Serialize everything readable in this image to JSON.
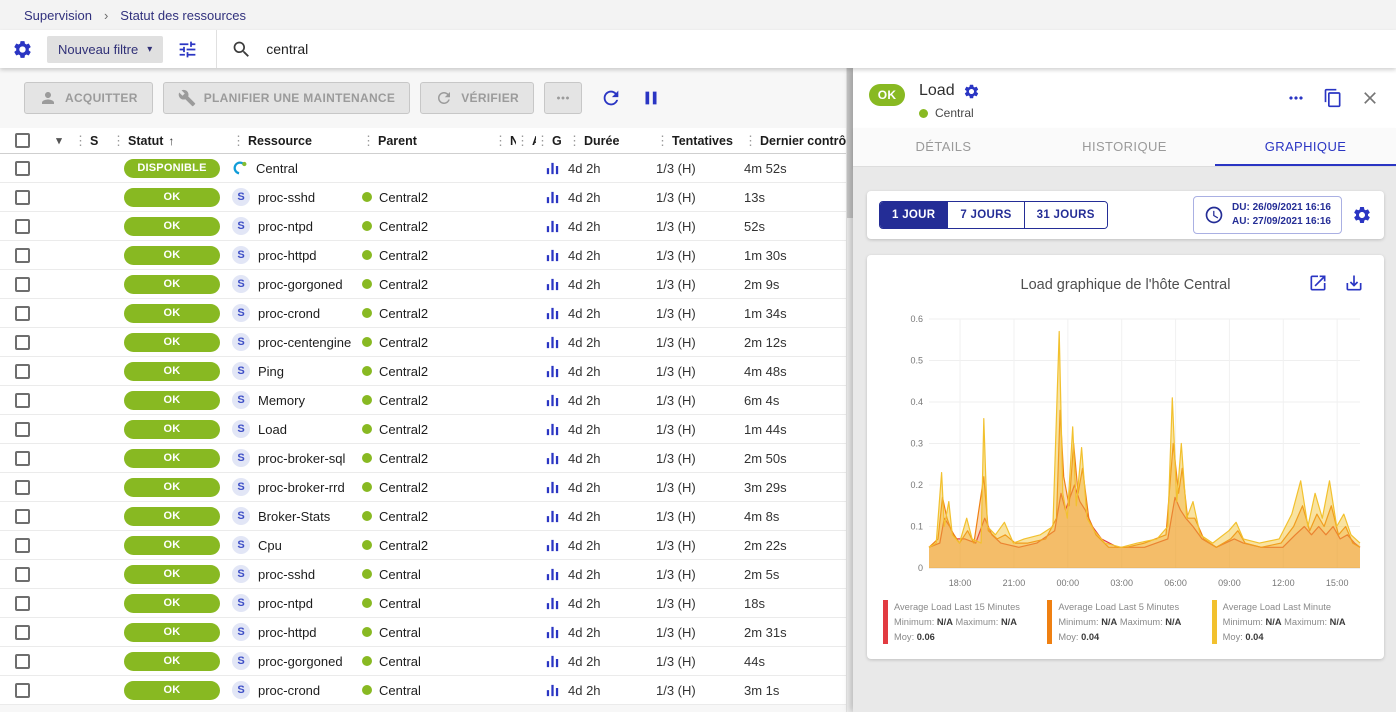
{
  "colors": {
    "accent": "#2a35c3",
    "navy": "#242d96",
    "status_ok": "#88b922",
    "chart_red": "#e23b41",
    "chart_orange": "#ef8012",
    "chart_yellow": "#f2c12e"
  },
  "icons": {
    "chevron_down": "▾",
    "sort_asc": "↑",
    "column_handle": "⋮",
    "breadcrumb_separator": "›",
    "service_letter": "S"
  },
  "breadcrumb": {
    "items": [
      "Supervision",
      "Statut des ressources"
    ]
  },
  "filter_bar": {
    "new_filter_label": "Nouveau filtre",
    "search_value": "central"
  },
  "toolbar": {
    "acknowledge_label": "ACQUITTER",
    "maintenance_label": "PLANIFIER UNE MAINTENANCE",
    "check_label": "VÉRIFIER"
  },
  "table": {
    "headers": {
      "s": "S",
      "status": "Statut",
      "resource": "Ressource",
      "parent": "Parent",
      "n": "N",
      "a": "A",
      "g": "G",
      "duration": "Durée",
      "tries": "Tentatives",
      "last_check": "Dernier contrôle"
    },
    "rows": [
      {
        "status": "DISPONIBLE",
        "kind": "host",
        "resource": "Central",
        "parent": "",
        "duration": "4d 2h",
        "tries": "1/3 (H)",
        "last_check": "4m 52s"
      },
      {
        "status": "OK",
        "kind": "service",
        "resource": "proc-sshd",
        "parent": "Central2",
        "duration": "4d 2h",
        "tries": "1/3 (H)",
        "last_check": "13s"
      },
      {
        "status": "OK",
        "kind": "service",
        "resource": "proc-ntpd",
        "parent": "Central2",
        "duration": "4d 2h",
        "tries": "1/3 (H)",
        "last_check": "52s"
      },
      {
        "status": "OK",
        "kind": "service",
        "resource": "proc-httpd",
        "parent": "Central2",
        "duration": "4d 2h",
        "tries": "1/3 (H)",
        "last_check": "1m 30s"
      },
      {
        "status": "OK",
        "kind": "service",
        "resource": "proc-gorgoned",
        "parent": "Central2",
        "duration": "4d 2h",
        "tries": "1/3 (H)",
        "last_check": "2m 9s"
      },
      {
        "status": "OK",
        "kind": "service",
        "resource": "proc-crond",
        "parent": "Central2",
        "duration": "4d 2h",
        "tries": "1/3 (H)",
        "last_check": "1m 34s"
      },
      {
        "status": "OK",
        "kind": "service",
        "resource": "proc-centengine",
        "parent": "Central2",
        "duration": "4d 2h",
        "tries": "1/3 (H)",
        "last_check": "2m 12s"
      },
      {
        "status": "OK",
        "kind": "service",
        "resource": "Ping",
        "parent": "Central2",
        "duration": "4d 2h",
        "tries": "1/3 (H)",
        "last_check": "4m 48s"
      },
      {
        "status": "OK",
        "kind": "service",
        "resource": "Memory",
        "parent": "Central2",
        "duration": "4d 2h",
        "tries": "1/3 (H)",
        "last_check": "6m 4s"
      },
      {
        "status": "OK",
        "kind": "service",
        "resource": "Load",
        "parent": "Central2",
        "duration": "4d 2h",
        "tries": "1/3 (H)",
        "last_check": "1m 44s"
      },
      {
        "status": "OK",
        "kind": "service",
        "resource": "proc-broker-sql",
        "parent": "Central2",
        "duration": "4d 2h",
        "tries": "1/3 (H)",
        "last_check": "2m 50s"
      },
      {
        "status": "OK",
        "kind": "service",
        "resource": "proc-broker-rrd",
        "parent": "Central2",
        "duration": "4d 2h",
        "tries": "1/3 (H)",
        "last_check": "3m 29s"
      },
      {
        "status": "OK",
        "kind": "service",
        "resource": "Broker-Stats",
        "parent": "Central2",
        "duration": "4d 2h",
        "tries": "1/3 (H)",
        "last_check": "4m 8s"
      },
      {
        "status": "OK",
        "kind": "service",
        "resource": "Cpu",
        "parent": "Central2",
        "duration": "4d 2h",
        "tries": "1/3 (H)",
        "last_check": "2m 22s"
      },
      {
        "status": "OK",
        "kind": "service",
        "resource": "proc-sshd",
        "parent": "Central",
        "duration": "4d 2h",
        "tries": "1/3 (H)",
        "last_check": "2m 5s"
      },
      {
        "status": "OK",
        "kind": "service",
        "resource": "proc-ntpd",
        "parent": "Central",
        "duration": "4d 2h",
        "tries": "1/3 (H)",
        "last_check": "18s"
      },
      {
        "status": "OK",
        "kind": "service",
        "resource": "proc-httpd",
        "parent": "Central",
        "duration": "4d 2h",
        "tries": "1/3 (H)",
        "last_check": "2m 31s"
      },
      {
        "status": "OK",
        "kind": "service",
        "resource": "proc-gorgoned",
        "parent": "Central",
        "duration": "4d 2h",
        "tries": "1/3 (H)",
        "last_check": "44s"
      },
      {
        "status": "OK",
        "kind": "service",
        "resource": "proc-crond",
        "parent": "Central",
        "duration": "4d 2h",
        "tries": "1/3 (H)",
        "last_check": "3m 1s"
      }
    ]
  },
  "panel": {
    "status": "OK",
    "title": "Load",
    "parent": "Central",
    "tabs": [
      "DÉTAILS",
      "HISTORIQUE",
      "GRAPHIQUE"
    ],
    "active_tab": "GRAPHIQUE",
    "time_buttons": [
      "1 JOUR",
      "7 JOURS",
      "31 JOURS"
    ],
    "active_time_button": "1 JOUR",
    "from_label": "DU: 26/09/2021 16:16",
    "to_label": "AU: 27/09/2021 16:16",
    "chart_title": "Load graphique de l'hôte Central",
    "legend": [
      {
        "title": "Average Load Last 15 Minutes",
        "min_label": "Minimum:",
        "min": "N/A",
        "max_label": "Maximum:",
        "max": "N/A",
        "avg_label": "Moy:",
        "avg": "0.06",
        "color": "#e23b41"
      },
      {
        "title": "Average Load Last 5 Minutes",
        "min_label": "Minimum:",
        "min": "N/A",
        "max_label": "Maximum:",
        "max": "N/A",
        "avg_label": "Moy:",
        "avg": "0.04",
        "color": "#ef8012"
      },
      {
        "title": "Average Load Last Minute",
        "min_label": "Minimum:",
        "min": "N/A",
        "max_label": "Maximum:",
        "max": "N/A",
        "avg_label": "Moy:",
        "avg": "0.04",
        "color": "#f2c12e"
      }
    ]
  },
  "chart_data": {
    "type": "area",
    "title": "Load graphique de l'hôte Central",
    "xlabel": "",
    "ylabel": "",
    "xlim": [
      0,
      24
    ],
    "ylim": [
      0,
      0.6
    ],
    "y_ticks": [
      0,
      0.1,
      0.2,
      0.3,
      0.4,
      0.5,
      0.6
    ],
    "x_ticks": [
      {
        "t": 1.73,
        "label": "18:00"
      },
      {
        "t": 4.73,
        "label": "21:00"
      },
      {
        "t": 7.73,
        "label": "00:00"
      },
      {
        "t": 10.73,
        "label": "03:00"
      },
      {
        "t": 13.73,
        "label": "06:00"
      },
      {
        "t": 16.73,
        "label": "09:00"
      },
      {
        "t": 19.73,
        "label": "12:00"
      },
      {
        "t": 22.73,
        "label": "15:00"
      }
    ],
    "series": [
      {
        "name": "Average Load Last 15 Minutes",
        "color": "#e23b41",
        "avg": 0.06,
        "points": [
          [
            0,
            0.05
          ],
          [
            0.6,
            0.06
          ],
          [
            0.85,
            0.12
          ],
          [
            1.15,
            0.1
          ],
          [
            1.5,
            0.07
          ],
          [
            2.0,
            0.07
          ],
          [
            2.6,
            0.06
          ],
          [
            3.1,
            0.12
          ],
          [
            3.5,
            0.08
          ],
          [
            4.0,
            0.06
          ],
          [
            5,
            0.05
          ],
          [
            6,
            0.06
          ],
          [
            7.0,
            0.09
          ],
          [
            7.35,
            0.18
          ],
          [
            7.6,
            0.14
          ],
          [
            8.1,
            0.2
          ],
          [
            8.4,
            0.16
          ],
          [
            8.7,
            0.14
          ],
          [
            9.1,
            0.1
          ],
          [
            9.6,
            0.07
          ],
          [
            10.5,
            0.05
          ],
          [
            12,
            0.05
          ],
          [
            13.3,
            0.07
          ],
          [
            13.7,
            0.17
          ],
          [
            14.0,
            0.14
          ],
          [
            14.3,
            0.12
          ],
          [
            14.7,
            0.1
          ],
          [
            15.2,
            0.07
          ],
          [
            16,
            0.05
          ],
          [
            17,
            0.07
          ],
          [
            17.5,
            0.06
          ],
          [
            18.5,
            0.05
          ],
          [
            19.7,
            0.05
          ],
          [
            20.4,
            0.08
          ],
          [
            20.9,
            0.1
          ],
          [
            21.3,
            0.08
          ],
          [
            21.7,
            0.1
          ],
          [
            22.1,
            0.08
          ],
          [
            22.5,
            0.1
          ],
          [
            22.9,
            0.07
          ],
          [
            23.3,
            0.08
          ],
          [
            23.7,
            0.06
          ],
          [
            24,
            0.05
          ]
        ]
      },
      {
        "name": "Average Load Last 5 Minutes",
        "color": "#ef8012",
        "avg": 0.04,
        "points": [
          [
            0,
            0.05
          ],
          [
            0.5,
            0.07
          ],
          [
            0.75,
            0.17
          ],
          [
            1.0,
            0.12
          ],
          [
            1.25,
            0.09
          ],
          [
            1.7,
            0.06
          ],
          [
            2.15,
            0.09
          ],
          [
            2.5,
            0.06
          ],
          [
            3.05,
            0.22
          ],
          [
            3.3,
            0.09
          ],
          [
            3.8,
            0.07
          ],
          [
            4.25,
            0.08
          ],
          [
            4.8,
            0.06
          ],
          [
            5.5,
            0.06
          ],
          [
            6.5,
            0.07
          ],
          [
            7.1,
            0.12
          ],
          [
            7.3,
            0.38
          ],
          [
            7.5,
            0.22
          ],
          [
            7.8,
            0.15
          ],
          [
            8.05,
            0.3
          ],
          [
            8.3,
            0.18
          ],
          [
            8.55,
            0.24
          ],
          [
            8.9,
            0.12
          ],
          [
            9.3,
            0.08
          ],
          [
            10,
            0.05
          ],
          [
            11,
            0.05
          ],
          [
            12,
            0.06
          ],
          [
            13.2,
            0.08
          ],
          [
            13.6,
            0.3
          ],
          [
            13.9,
            0.18
          ],
          [
            14.1,
            0.24
          ],
          [
            14.4,
            0.12
          ],
          [
            14.8,
            0.12
          ],
          [
            15.3,
            0.07
          ],
          [
            16,
            0.05
          ],
          [
            16.8,
            0.07
          ],
          [
            17.2,
            0.09
          ],
          [
            17.6,
            0.06
          ],
          [
            18.5,
            0.05
          ],
          [
            19.6,
            0.06
          ],
          [
            20.3,
            0.1
          ],
          [
            20.8,
            0.15
          ],
          [
            21.2,
            0.09
          ],
          [
            21.6,
            0.13
          ],
          [
            22.0,
            0.1
          ],
          [
            22.4,
            0.15
          ],
          [
            22.8,
            0.08
          ],
          [
            23.2,
            0.1
          ],
          [
            23.6,
            0.06
          ],
          [
            24,
            0.05
          ]
        ]
      },
      {
        "name": "Average Load Last Minute",
        "color": "#f2c12e",
        "avg": 0.04,
        "points": [
          [
            0,
            0.05
          ],
          [
            0.4,
            0.06
          ],
          [
            0.7,
            0.23
          ],
          [
            0.85,
            0.1
          ],
          [
            1.1,
            0.16
          ],
          [
            1.3,
            0.08
          ],
          [
            1.7,
            0.06
          ],
          [
            2.1,
            0.12
          ],
          [
            2.4,
            0.07
          ],
          [
            2.9,
            0.06
          ],
          [
            3.05,
            0.36
          ],
          [
            3.25,
            0.1
          ],
          [
            3.7,
            0.08
          ],
          [
            4.2,
            0.11
          ],
          [
            4.7,
            0.06
          ],
          [
            5.3,
            0.07
          ],
          [
            6.2,
            0.08
          ],
          [
            6.9,
            0.1
          ],
          [
            7.25,
            0.57
          ],
          [
            7.45,
            0.18
          ],
          [
            7.7,
            0.12
          ],
          [
            8.0,
            0.34
          ],
          [
            8.2,
            0.15
          ],
          [
            8.5,
            0.29
          ],
          [
            8.8,
            0.12
          ],
          [
            9.2,
            0.09
          ],
          [
            9.8,
            0.06
          ],
          [
            10.7,
            0.05
          ],
          [
            11.6,
            0.06
          ],
          [
            12.7,
            0.07
          ],
          [
            13.3,
            0.1
          ],
          [
            13.55,
            0.41
          ],
          [
            13.8,
            0.16
          ],
          [
            14.05,
            0.3
          ],
          [
            14.35,
            0.12
          ],
          [
            14.7,
            0.16
          ],
          [
            15.1,
            0.08
          ],
          [
            15.8,
            0.06
          ],
          [
            16.7,
            0.09
          ],
          [
            17.1,
            0.11
          ],
          [
            17.5,
            0.07
          ],
          [
            18.4,
            0.06
          ],
          [
            19.5,
            0.07
          ],
          [
            20.2,
            0.13
          ],
          [
            20.7,
            0.21
          ],
          [
            21.1,
            0.1
          ],
          [
            21.5,
            0.18
          ],
          [
            21.9,
            0.12
          ],
          [
            22.3,
            0.21
          ],
          [
            22.7,
            0.1
          ],
          [
            23.1,
            0.13
          ],
          [
            23.5,
            0.08
          ],
          [
            24,
            0.06
          ]
        ]
      }
    ],
    "legend_position": "bottom",
    "grid": true
  }
}
